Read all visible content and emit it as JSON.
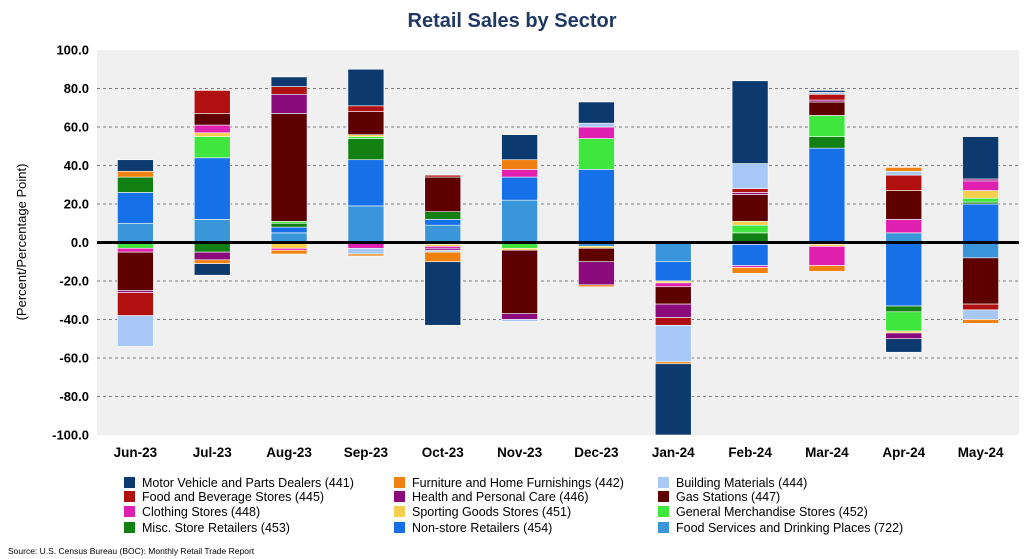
{
  "chart_data": {
    "type": "bar",
    "stacked": true,
    "title": "Retail Sales by Sector",
    "ylabel": "(Percent/Percentage Point)",
    "xlabel": "",
    "ylim": [
      -100,
      100
    ],
    "y_ticks": [
      "100.0",
      "80.0",
      "60.0",
      "40.0",
      "20.0",
      "0.0",
      "-20.0",
      "-40.0",
      "-60.0",
      "-80.0",
      "-100.0"
    ],
    "grid": "horizontal dashed",
    "legend_position": "bottom",
    "categories": [
      "Jun-23",
      "Jul-23",
      "Aug-23",
      "Sep-23",
      "Oct-23",
      "Nov-23",
      "Dec-23",
      "Jan-24",
      "Feb-24",
      "Mar-24",
      "Apr-24",
      "May-24"
    ],
    "series": [
      {
        "name": "Food Services and Drinking Places (722)",
        "color": "#3a96d8",
        "values": [
          10,
          12,
          5,
          19,
          9,
          22,
          -2,
          -10,
          -1,
          -1,
          5,
          -8
        ]
      },
      {
        "name": "Non-store Retailers (454)",
        "color": "#1670e8",
        "values": [
          16,
          32,
          3,
          24,
          3,
          12,
          38,
          -10,
          -11,
          49,
          -33,
          20
        ]
      },
      {
        "name": "Misc. Store Retailers (453)",
        "color": "#138013",
        "values": [
          8,
          -5,
          2,
          11,
          4,
          0,
          0,
          0,
          5,
          6,
          -3,
          1
        ]
      },
      {
        "name": "General Merchandise Stores (452)",
        "color": "#3ee63e",
        "values": [
          -3,
          11,
          1,
          1,
          -1,
          -3,
          16,
          0,
          4,
          11,
          -10,
          2
        ]
      },
      {
        "name": "Sporting Goods Stores (451)",
        "color": "#f6cf4c",
        "values": [
          0,
          2,
          -3,
          1,
          -1,
          -1,
          -1,
          -1,
          2,
          -1,
          -1,
          4
        ]
      },
      {
        "name": "Clothing Stores (448)",
        "color": "#e020b0",
        "values": [
          -2,
          4,
          -1,
          -3,
          -1,
          4,
          6,
          -2,
          -1,
          -10,
          7,
          5
        ]
      },
      {
        "name": "Gas Stations (447)",
        "color": "#5e0000",
        "values": [
          -20,
          6,
          56,
          12,
          18,
          -33,
          -7,
          -9,
          14,
          7,
          15,
          -24
        ]
      },
      {
        "name": "Health and Personal Care (446)",
        "color": "#8b0a7c",
        "values": [
          -1,
          -4,
          10,
          0,
          -1,
          -3,
          -12,
          -7,
          1,
          1,
          -3,
          1
        ]
      },
      {
        "name": "Food and Beverage Stores (445)",
        "color": "#b01010",
        "values": [
          -12,
          12,
          4,
          3,
          1,
          0,
          0,
          -4,
          2,
          3,
          8,
          -3
        ]
      },
      {
        "name": "Building Materials (444)",
        "color": "#a8c8f8",
        "values": [
          -16,
          0,
          0,
          -3,
          -1,
          -1,
          2,
          -19,
          13,
          1,
          2,
          -5
        ]
      },
      {
        "name": "Furniture and Home Furnishings (442)",
        "color": "#f08010",
        "values": [
          3,
          -2,
          -2,
          -1,
          -5,
          5,
          -1,
          -1,
          -3,
          -3,
          2,
          -2
        ]
      },
      {
        "name": "Motor Vehicle and Parts Dealers (441)",
        "color": "#0c3a6e",
        "values": [
          6,
          -6,
          5,
          19,
          -33,
          13,
          11,
          -37,
          43,
          1,
          -7,
          22
        ]
      }
    ],
    "legend_order": [
      "Motor Vehicle and Parts Dealers (441)",
      "Furniture and Home Furnishings (442)",
      "Building Materials (444)",
      "Food and Beverage Stores (445)",
      "Health and Personal Care (446)",
      "Gas Stations (447)",
      "Clothing Stores (448)",
      "Sporting Goods Stores (451)",
      "General Merchandise Stores (452)",
      "Misc. Store Retailers (453)",
      "Non-store Retailers (454)",
      "Food Services and Drinking Places (722)"
    ],
    "source": "Source: U.S. Census Bureau (BOC): Monthly Retail Trade Report"
  }
}
